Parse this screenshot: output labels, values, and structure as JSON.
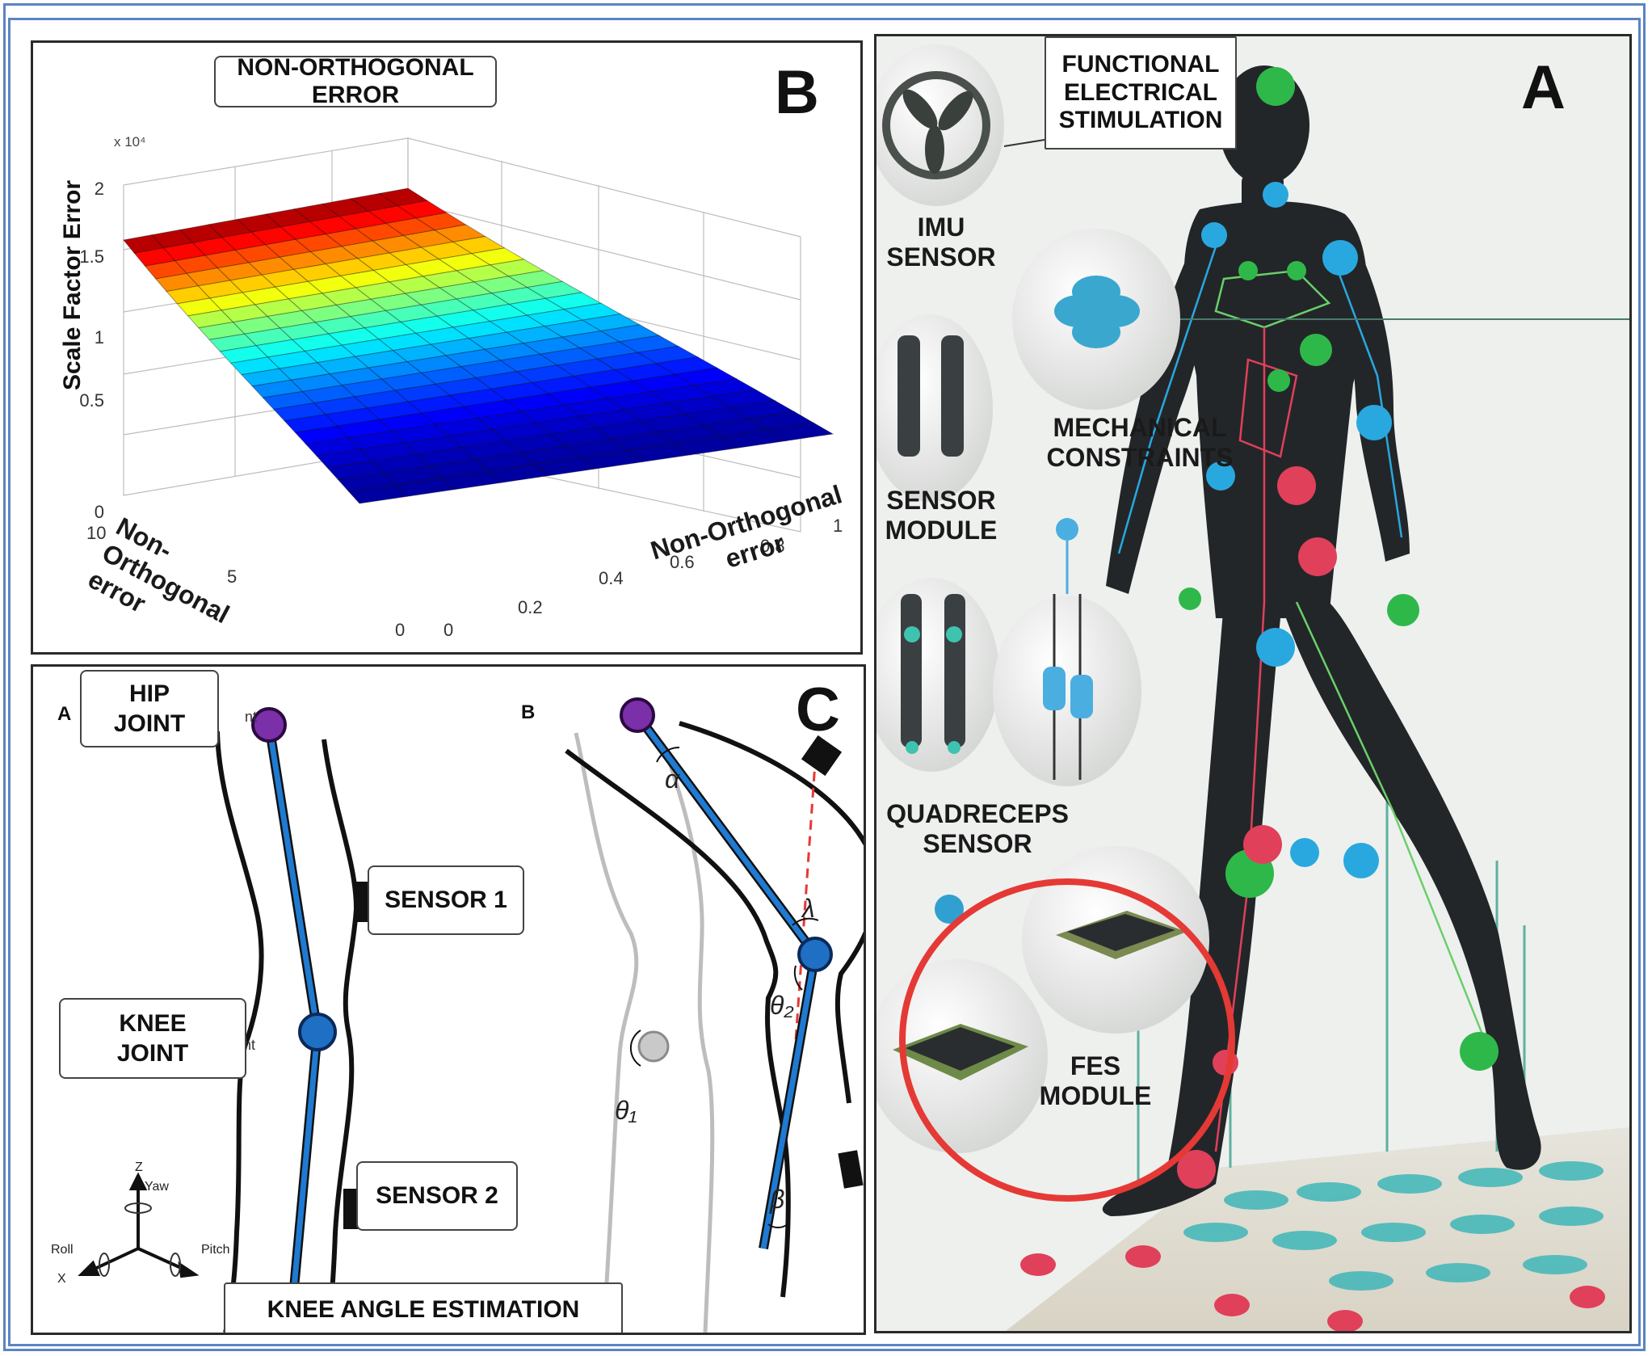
{
  "panel_b": {
    "letter": "B",
    "title": "NON-ORTHOGONAL ERROR",
    "z_label": "Scale Factor Error",
    "z_multiplier": "x 10⁴",
    "z_ticks": [
      "0",
      "0.5",
      "1",
      "1.5",
      "2"
    ],
    "left_axis_label": "Non-\nOrthogonal\nerror",
    "left_ticks": [
      "10",
      "5",
      "0"
    ],
    "right_axis_label": "Non-Orthogonal\nerror",
    "right_ticks": [
      "0",
      "0.2",
      "0.4",
      "0.6",
      "0.8",
      "1"
    ]
  },
  "panel_c": {
    "letter": "C",
    "sub_a": "A",
    "sub_b": "B",
    "hip_label": "HIP\nJOINT",
    "knee_label": "KNEE\nJOINT",
    "sensor1": "SENSOR 1",
    "sensor2": "SENSOR 2",
    "bottom_title": "KNEE ANGLE ESTIMATION",
    "peek_nt_1": "nt",
    "peek_nt_2": "nt",
    "alpha": "α",
    "lambda": "λ",
    "theta2": "θ₂",
    "theta1": "θ₁",
    "beta": "β",
    "axes": {
      "z": "Z",
      "yaw": "Yaw",
      "roll": "Roll",
      "pitch": "Pitch",
      "x": "X"
    }
  },
  "panel_a": {
    "letter": "A",
    "fes_box": "FUNCTIONAL\nELECTRICAL\nSTIMULATION",
    "imu": "IMU\nSENSOR",
    "mechanical": "MECHANICAL\nCONSTRAINTS",
    "sensor_module": "SENSOR\nMODULE",
    "quadriceps": "QUADRECEPS\nSENSOR",
    "fes_module": "FES\nMODULE"
  },
  "colors": {
    "frame": "#5b84c4",
    "joint_purple": "#7b2fa8",
    "joint_blue": "#1f6fc4",
    "highlight_red": "#e53935",
    "node_green": "#2fb84a",
    "node_cyan": "#29a8e0",
    "node_red": "#e0405a"
  }
}
